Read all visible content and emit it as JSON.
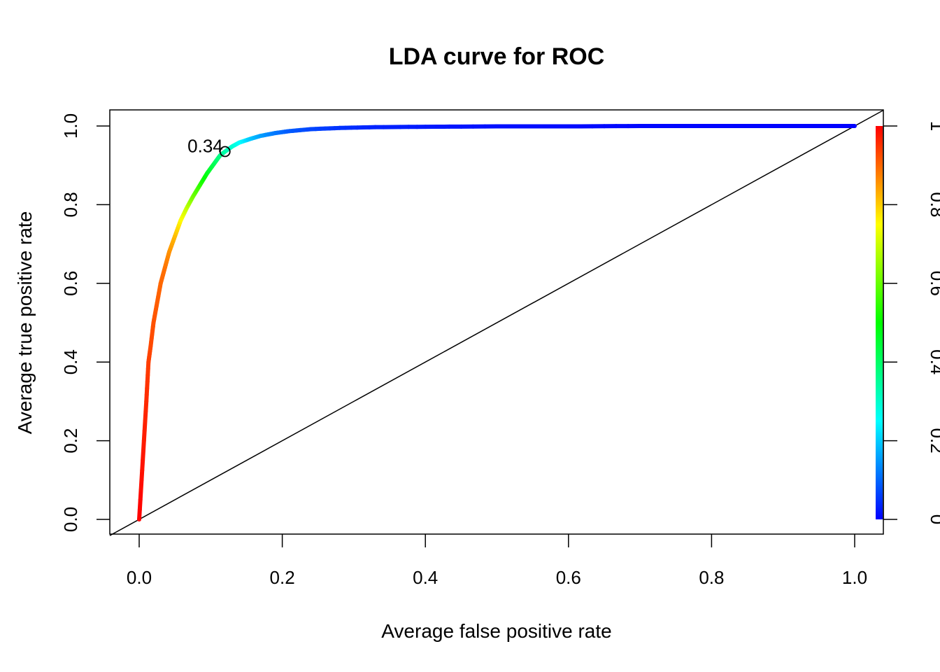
{
  "chart_data": {
    "type": "line",
    "title": "LDA curve for ROC",
    "xlabel": "Average false positive rate",
    "ylabel": "Average true positive rate",
    "xlim": [
      0,
      1
    ],
    "ylim": [
      0,
      1
    ],
    "x_ticks": [
      "0.0",
      "0.2",
      "0.4",
      "0.6",
      "0.8",
      "1.0"
    ],
    "y_ticks": [
      "0.0",
      "0.2",
      "0.4",
      "0.6",
      "0.8",
      "1.0"
    ],
    "grid": false,
    "legend": "none",
    "series": [
      {
        "x": [
          0.0,
          0.005,
          0.01,
          0.013,
          0.016,
          0.02,
          0.025,
          0.03,
          0.036,
          0.042,
          0.05,
          0.058,
          0.066,
          0.075,
          0.085,
          0.095,
          0.105,
          0.113,
          0.12,
          0.13,
          0.14,
          0.155,
          0.17,
          0.19,
          0.21,
          0.24,
          0.28,
          0.33,
          0.4,
          0.5,
          0.6,
          0.7,
          0.8,
          0.9,
          1.0
        ],
        "y": [
          0.0,
          0.15,
          0.3,
          0.4,
          0.44,
          0.5,
          0.55,
          0.6,
          0.64,
          0.68,
          0.72,
          0.76,
          0.79,
          0.82,
          0.85,
          0.88,
          0.905,
          0.925,
          0.935,
          0.948,
          0.958,
          0.967,
          0.975,
          0.982,
          0.987,
          0.992,
          0.995,
          0.997,
          0.998,
          0.999,
          0.999,
          1.0,
          1.0,
          1.0,
          1.0
        ],
        "threshold": [
          1.0,
          0.98,
          0.96,
          0.94,
          0.93,
          0.92,
          0.91,
          0.9,
          0.89,
          0.86,
          0.82,
          0.76,
          0.7,
          0.62,
          0.55,
          0.48,
          0.42,
          0.37,
          0.34,
          0.3,
          0.26,
          0.2,
          0.16,
          0.12,
          0.09,
          0.07,
          0.05,
          0.035,
          0.025,
          0.015,
          0.01,
          0.007,
          0.004,
          0.002,
          0.0
        ]
      }
    ],
    "diagonal": {
      "from": [
        0,
        0
      ],
      "to": [
        1,
        1
      ],
      "color": "#000000"
    },
    "annotation": {
      "label": "0.34",
      "x": 0.12,
      "y": 0.935
    },
    "colorbar": {
      "ticks": [
        "0",
        "0.2",
        "0.4",
        "0.6",
        "0.8",
        "1"
      ],
      "range": [
        0,
        1
      ],
      "colormap": "rainbow",
      "colors": [
        "#0000ff",
        "#00ffff",
        "#00ff00",
        "#ffff00",
        "#ff0000"
      ]
    }
  }
}
